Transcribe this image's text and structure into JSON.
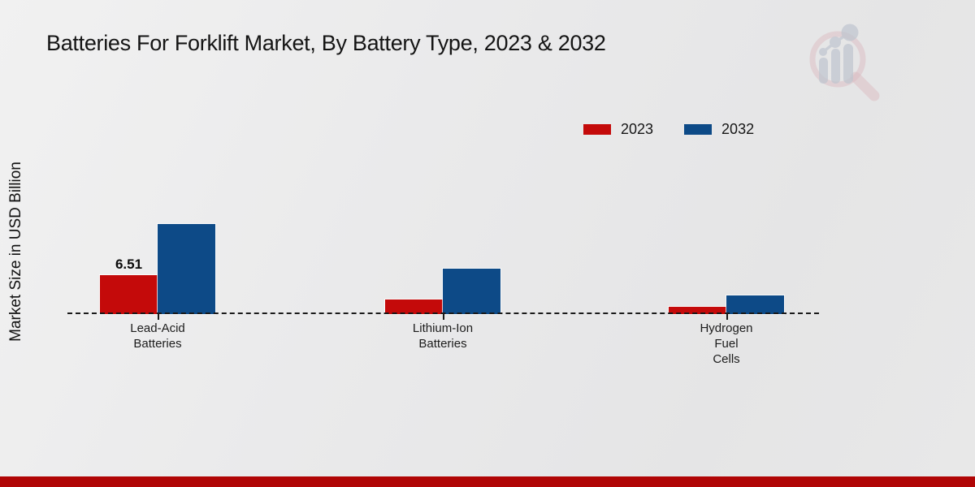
{
  "title": "Batteries For Forklift Market, By Battery Type, 2023 & 2032",
  "y_axis_label": "Market Size in USD Billion",
  "colors": {
    "series_2023": "#c40a0a",
    "series_2032": "#0d4a87",
    "footer_bar": "#b00505",
    "background": "#e9e9e9",
    "text": "#1a1a1a"
  },
  "legend": {
    "items": [
      {
        "label": "2023",
        "color": "#c40a0a"
      },
      {
        "label": "2032",
        "color": "#0d4a87"
      }
    ]
  },
  "logo": {
    "name": "market-research-future-logo"
  },
  "chart_data": {
    "type": "bar",
    "title": "Batteries For Forklift Market, By Battery Type, 2023 & 2032",
    "ylabel": "Market Size in USD Billion",
    "categories": [
      "Lead-Acid Batteries",
      "Lithium-Ion Batteries",
      "Hydrogen Fuel Cells"
    ],
    "category_label_lines": [
      [
        "Lead-Acid",
        "Batteries"
      ],
      [
        "Lithium-Ion",
        "Batteries"
      ],
      [
        "Hydrogen",
        "Fuel",
        "Cells"
      ]
    ],
    "series": [
      {
        "name": "2023",
        "color": "#c40a0a",
        "values": [
          6.51,
          2.45,
          1.2
        ]
      },
      {
        "name": "2032",
        "color": "#0d4a87",
        "values": [
          15.1,
          7.6,
          3.1
        ]
      }
    ],
    "bar_value_labels": [
      [
        "6.51",
        "",
        ""
      ],
      [
        "",
        "",
        ""
      ]
    ],
    "ylim": [
      0,
      16
    ],
    "grid": false,
    "baseline_style": "dashed",
    "legend_position": "top-right"
  }
}
